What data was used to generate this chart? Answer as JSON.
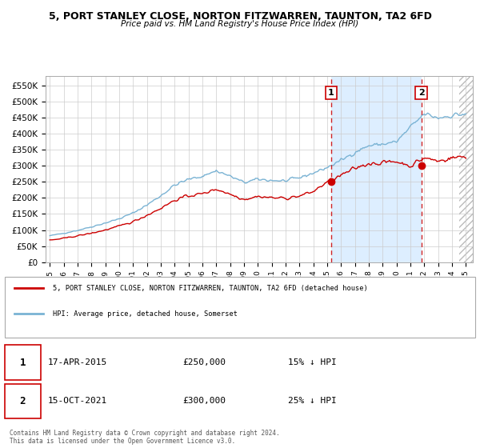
{
  "title": "5, PORT STANLEY CLOSE, NORTON FITZWARREN, TAUNTON, TA2 6FD",
  "subtitle": "Price paid vs. HM Land Registry's House Price Index (HPI)",
  "legend_line1": "5, PORT STANLEY CLOSE, NORTON FITZWARREN, TAUNTON, TA2 6FD (detached house)",
  "legend_line2": "HPI: Average price, detached house, Somerset",
  "footnote": "Contains HM Land Registry data © Crown copyright and database right 2024.\nThis data is licensed under the Open Government Licence v3.0.",
  "transaction1_date": "17-APR-2015",
  "transaction1_price": "£250,000",
  "transaction1_hpi": "15% ↓ HPI",
  "transaction2_date": "15-OCT-2021",
  "transaction2_price": "£300,000",
  "transaction2_hpi": "25% ↓ HPI",
  "red_color": "#cc0000",
  "blue_color": "#7ab3d4",
  "shade_color": "#ddeeff",
  "grid_color": "#cccccc",
  "ylim": [
    0,
    580000
  ],
  "yticks": [
    0,
    50000,
    100000,
    150000,
    200000,
    250000,
    300000,
    350000,
    400000,
    450000,
    500000,
    550000
  ],
  "ytick_labels": [
    "£0",
    "£50K",
    "£100K",
    "£150K",
    "£200K",
    "£250K",
    "£300K",
    "£350K",
    "£400K",
    "£450K",
    "£500K",
    "£550K"
  ],
  "vline1_year": 2015.29,
  "vline2_year": 2021.79,
  "marker1_year": 2015.29,
  "marker1_value": 250000,
  "marker2_year": 2021.79,
  "marker2_value": 300000,
  "xmin": 1995.0,
  "xmax": 2025.5,
  "future_start": 2024.5
}
